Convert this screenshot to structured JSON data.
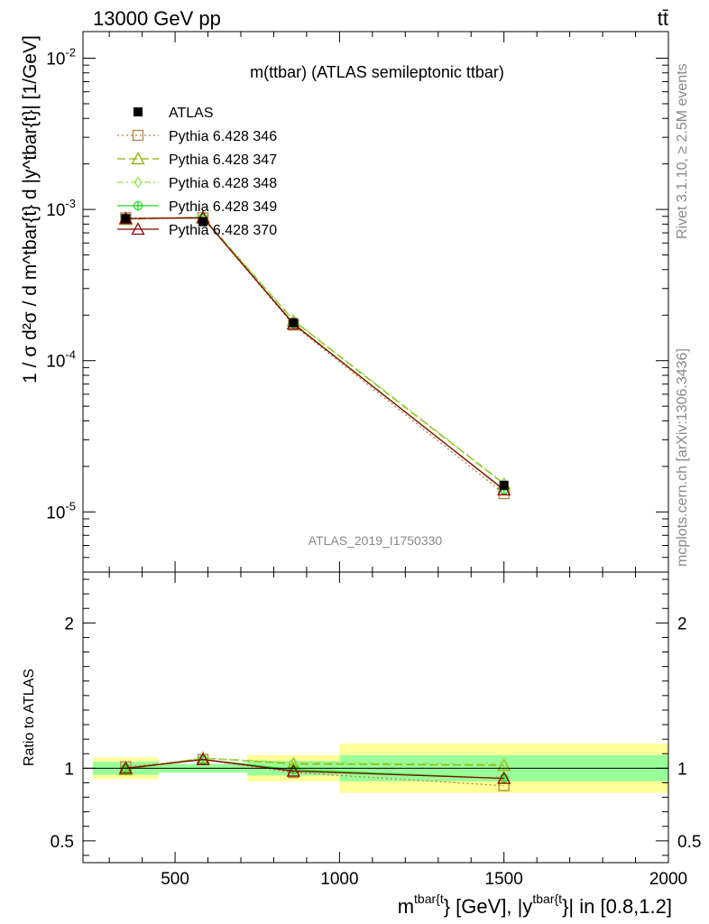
{
  "header": {
    "left": "13000 GeV pp",
    "right": "tt̄"
  },
  "side": {
    "rivet": "Rivet 3.1.10, ≥ 2.5M events",
    "mcplots": "mcplots.cern.ch [arXiv:1306.3436]"
  },
  "chart_data": {
    "type": "line",
    "title": "m(ttbar) (ATLAS semileptonic ttbar)",
    "watermark": "ATLAS_2019_I1750330",
    "xlabel": {
      "main": "m",
      "sup1": "tbar{t",
      "mid": "} [GeV], |y",
      "sup2": "tbar{t",
      "end": "}| in [0.8,1.2]"
    },
    "ylabel": "1 / σ d²σ / d m^tbar{t} d |y^tbar{t}| [1/GeV]",
    "ratio_ylabel": "Ratio to ATLAS",
    "xlim": [
      220,
      2000
    ],
    "ylim": [
      4e-06,
      0.015
    ],
    "yscale": "log",
    "ratio_ylim": [
      0.35,
      2.35
    ],
    "x_ticks": [
      "500",
      "1000",
      "1500",
      "2000"
    ],
    "y_ticks": [
      "10^-2",
      "10^-3",
      "10^-4",
      "10^-5"
    ],
    "ratio_ticks": [
      "0.5",
      "1",
      "2"
    ],
    "legend_position": "top-left",
    "data": {
      "name": "ATLAS",
      "x": [
        350,
        585,
        860,
        1500
      ],
      "y": [
        0.00087,
        0.00083,
        0.000178,
        1.5e-05
      ],
      "bins": [
        [
          250,
          450
        ],
        [
          450,
          720
        ],
        [
          720,
          1000
        ],
        [
          1000,
          2000
        ]
      ],
      "band_inner": [
        0.045,
        0.03,
        0.05,
        0.09
      ],
      "band_outer": [
        0.075,
        0.03,
        0.09,
        0.17
      ]
    },
    "series": [
      {
        "name": "Pythia 6.428 346",
        "color": "#b5833d",
        "dash": "2,3",
        "marker": "square",
        "y": [
          0.00088,
          0.00088,
          0.000172,
          1.32e-05
        ],
        "ratio": [
          1.01,
          1.06,
          0.97,
          0.88
        ]
      },
      {
        "name": "Pythia 6.428 347",
        "color": "#8db000",
        "dash": "9,4",
        "marker": "triangle",
        "y": [
          0.00086,
          0.00089,
          0.000184,
          1.53e-05
        ],
        "ratio": [
          0.99,
          1.07,
          1.03,
          1.02
        ]
      },
      {
        "name": "Pythia 6.428 348",
        "color": "#9ee05a",
        "dash": "7,3,2,3",
        "marker": "diamond",
        "y": [
          0.00087,
          0.00089,
          0.000186,
          1.55e-05
        ],
        "ratio": [
          1.0,
          1.07,
          1.04,
          1.03
        ]
      },
      {
        "name": "Pythia 6.428 349",
        "color": "#22dd22",
        "dash": "",
        "marker": "circle-cross",
        "y": [
          0.00087,
          0.00088,
          0.000176,
          1.4e-05
        ],
        "ratio": [
          1.0,
          1.06,
          0.99,
          0.93
        ]
      },
      {
        "name": "Pythia 6.428 370",
        "color": "#8b0000",
        "dash": "",
        "marker": "triangle",
        "y": [
          0.00087,
          0.00088,
          0.000175,
          1.4e-05
        ],
        "ratio": [
          1.0,
          1.06,
          0.98,
          0.93
        ]
      }
    ]
  }
}
